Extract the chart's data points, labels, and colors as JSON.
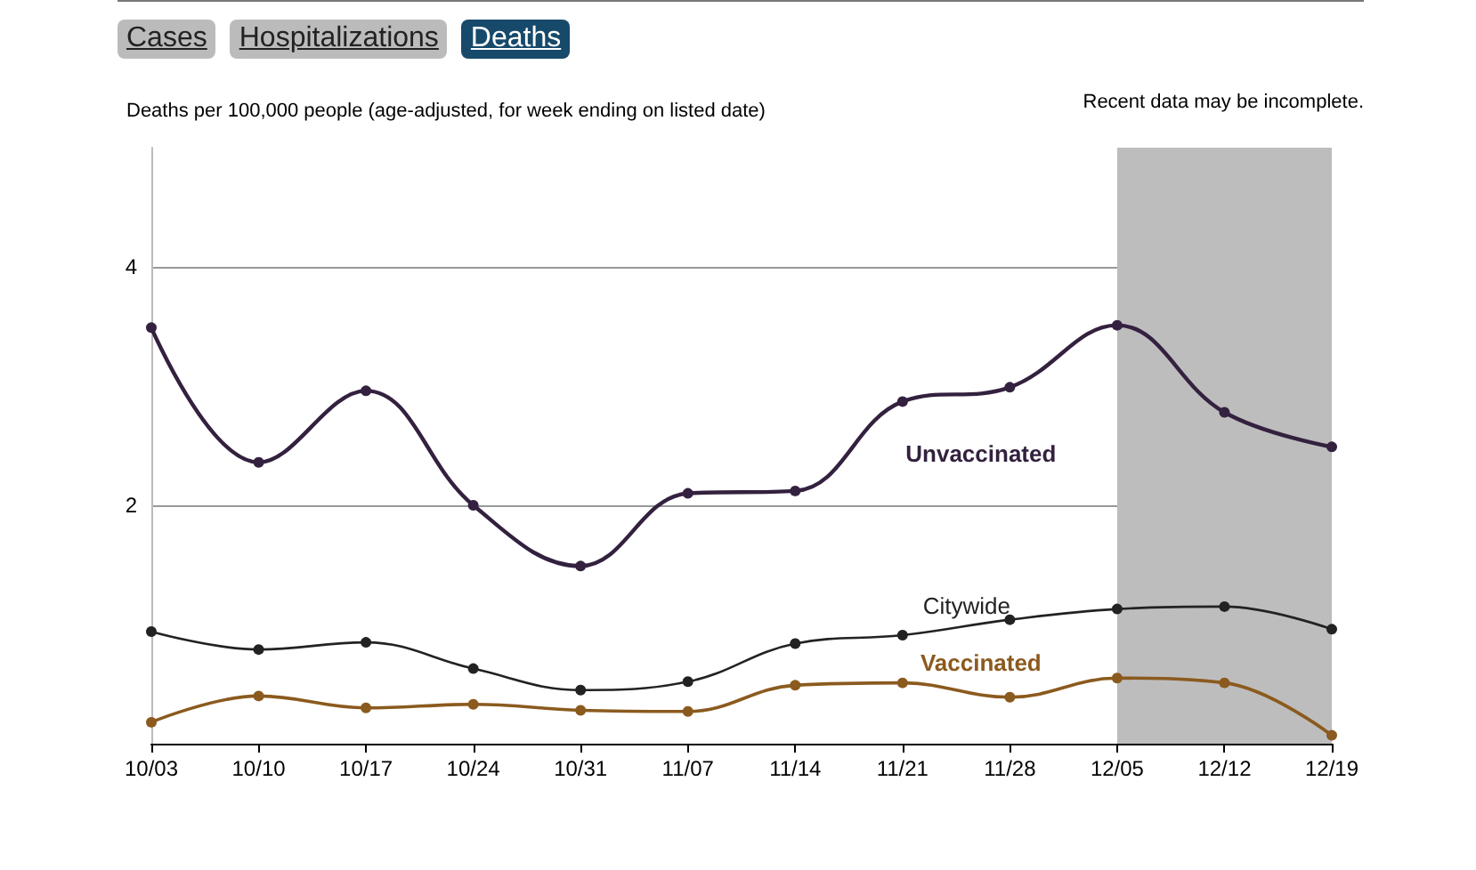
{
  "chart_data": {
    "type": "line",
    "ylabel": "Deaths per 100,000 people (age-adjusted, for week ending on listed date)",
    "annotations": [
      "Cases",
      "Hospitalizations",
      "Deaths"
    ],
    "categories": [
      "10/03",
      "10/10",
      "10/17",
      "10/24",
      "10/31",
      "11/07",
      "11/14",
      "11/21",
      "11/28",
      "12/05",
      "12/12",
      "12/19"
    ],
    "series": [
      {
        "name": "Unvaccinated",
        "color": "#33213f",
        "values": [
          3.49,
          2.36,
          2.96,
          2.0,
          1.49,
          2.1,
          2.12,
          2.87,
          2.99,
          3.51,
          2.78,
          2.49
        ]
      },
      {
        "name": "Citywide",
        "color": "#222222",
        "values": [
          0.94,
          0.79,
          0.85,
          0.63,
          0.45,
          0.52,
          0.84,
          0.91,
          1.04,
          1.13,
          1.15,
          0.96
        ]
      },
      {
        "name": "Vaccinated",
        "color": "#8b5a1e",
        "values": [
          0.18,
          0.4,
          0.3,
          0.33,
          0.28,
          0.27,
          0.49,
          0.51,
          0.39,
          0.55,
          0.51,
          0.07
        ]
      }
    ],
    "bands": [
      {
        "axis": "x",
        "from": "12/05",
        "to": "12/19",
        "label": "Recent data may be incomplete.",
        "color": "#bdbdbd"
      }
    ],
    "ylim": [
      0,
      5
    ],
    "yticks": [
      2,
      4
    ],
    "grid": "y",
    "legend": false,
    "marker": "circle",
    "line_style": "solid"
  }
}
